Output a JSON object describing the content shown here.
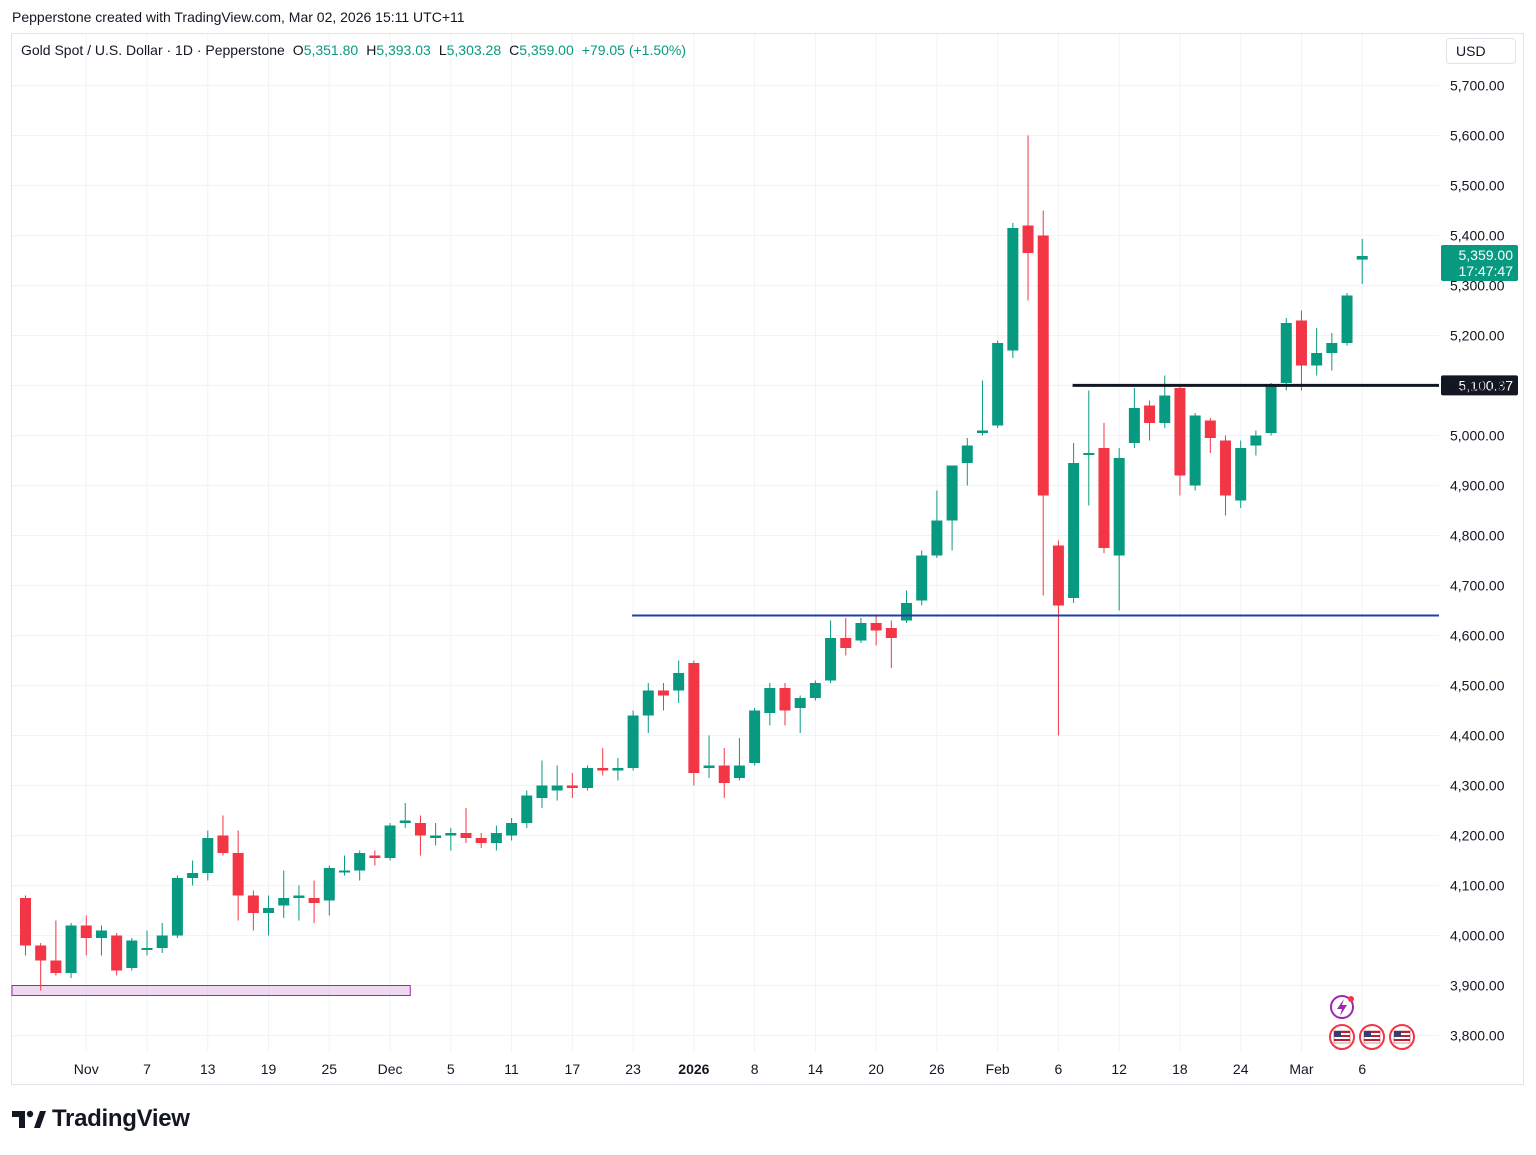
{
  "header": {
    "attribution": "Pepperstone created with TradingView.com, Mar 02, 2026 15:11 UTC+11"
  },
  "legend": {
    "symbol": "Gold Spot / U.S. Dollar · 1D · Pepperstone",
    "open_label": "O",
    "open": "5,351.80",
    "high_label": "H",
    "high": "5,393.03",
    "low_label": "L",
    "low": "5,303.28",
    "close_label": "C",
    "close": "5,359.00",
    "change": "+79.05 (+1.50%)"
  },
  "currency": "USD",
  "brand": {
    "name": "TradingView",
    "logo_icon": "tradingview-logo-icon"
  },
  "colors": {
    "up": "#089981",
    "down": "#f23645",
    "support_line": "#1e3fa8",
    "resistance_line": "#131722",
    "zone": "#9c27b0"
  },
  "events": [
    "lightning-event-icon",
    "us-flag-icon",
    "us-flag-icon",
    "us-flag-icon"
  ],
  "chart_data": {
    "type": "candlestick",
    "price_axis": {
      "min": 3750,
      "max": 5800,
      "tick_step": 100,
      "labels": [
        "3,800.00",
        "3,900.00",
        "4,000.00",
        "4,100.00",
        "4,200.00",
        "4,300.00",
        "4,400.00",
        "4,500.00",
        "4,600.00",
        "4,700.00",
        "4,800.00",
        "4,900.00",
        "5,000.00",
        "5,100.00",
        "5,200.00",
        "5,300.00",
        "5,400.00",
        "5,500.00",
        "5,600.00",
        "5,700.00"
      ]
    },
    "time_axis": {
      "labels": [
        {
          "bar": 4,
          "text": "Nov",
          "bold": false
        },
        {
          "bar": 8,
          "text": "7",
          "bold": false
        },
        {
          "bar": 12,
          "text": "13",
          "bold": false
        },
        {
          "bar": 16,
          "text": "19",
          "bold": false
        },
        {
          "bar": 20,
          "text": "25",
          "bold": false
        },
        {
          "bar": 24,
          "text": "Dec",
          "bold": false
        },
        {
          "bar": 28,
          "text": "5",
          "bold": false
        },
        {
          "bar": 32,
          "text": "11",
          "bold": false
        },
        {
          "bar": 36,
          "text": "17",
          "bold": false
        },
        {
          "bar": 40,
          "text": "23",
          "bold": false
        },
        {
          "bar": 44,
          "text": "2026",
          "bold": true
        },
        {
          "bar": 48,
          "text": "8",
          "bold": false
        },
        {
          "bar": 52,
          "text": "14",
          "bold": false
        },
        {
          "bar": 56,
          "text": "20",
          "bold": false
        },
        {
          "bar": 60,
          "text": "26",
          "bold": false
        },
        {
          "bar": 64,
          "text": "Feb",
          "bold": false
        },
        {
          "bar": 68,
          "text": "6",
          "bold": false
        },
        {
          "bar": 72,
          "text": "12",
          "bold": false
        },
        {
          "bar": 76,
          "text": "18",
          "bold": false
        },
        {
          "bar": 80,
          "text": "24",
          "bold": false
        },
        {
          "bar": 84,
          "text": "Mar",
          "bold": false
        },
        {
          "bar": 88,
          "text": "6",
          "bold": false
        }
      ]
    },
    "candles": [
      [
        4075,
        4080,
        3960,
        3980
      ],
      [
        3980,
        3985,
        3890,
        3950
      ],
      [
        3950,
        4030,
        3920,
        3925
      ],
      [
        3925,
        4025,
        3915,
        4020
      ],
      [
        4020,
        4040,
        3960,
        3995
      ],
      [
        3995,
        4020,
        3960,
        4010
      ],
      [
        4000,
        4005,
        3920,
        3930
      ],
      [
        3935,
        3995,
        3930,
        3990
      ],
      [
        3975,
        4010,
        3960,
        3975
      ],
      [
        3975,
        4025,
        3965,
        4000
      ],
      [
        4000,
        4120,
        3995,
        4115
      ],
      [
        4115,
        4150,
        4100,
        4125
      ],
      [
        4125,
        4210,
        4110,
        4195
      ],
      [
        4200,
        4240,
        4160,
        4165
      ],
      [
        4165,
        4210,
        4030,
        4080
      ],
      [
        4080,
        4090,
        4010,
        4045
      ],
      [
        4045,
        4080,
        4000,
        4055
      ],
      [
        4060,
        4130,
        4035,
        4075
      ],
      [
        4075,
        4100,
        4030,
        4080
      ],
      [
        4075,
        4110,
        4025,
        4065
      ],
      [
        4070,
        4140,
        4040,
        4135
      ],
      [
        4130,
        4160,
        4120,
        4130
      ],
      [
        4130,
        4170,
        4110,
        4165
      ],
      [
        4160,
        4170,
        4140,
        4155
      ],
      [
        4155,
        4225,
        4150,
        4220
      ],
      [
        4225,
        4265,
        4215,
        4230
      ],
      [
        4225,
        4240,
        4160,
        4200
      ],
      [
        4195,
        4225,
        4180,
        4200
      ],
      [
        4200,
        4215,
        4170,
        4205
      ],
      [
        4205,
        4255,
        4185,
        4195
      ],
      [
        4195,
        4205,
        4175,
        4185
      ],
      [
        4185,
        4220,
        4170,
        4205
      ],
      [
        4200,
        4235,
        4190,
        4225
      ],
      [
        4225,
        4290,
        4215,
        4280
      ],
      [
        4275,
        4350,
        4255,
        4300
      ],
      [
        4290,
        4340,
        4270,
        4300
      ],
      [
        4300,
        4325,
        4275,
        4295
      ],
      [
        4295,
        4340,
        4290,
        4335
      ],
      [
        4335,
        4375,
        4320,
        4330
      ],
      [
        4330,
        4355,
        4310,
        4335
      ],
      [
        4335,
        4450,
        4330,
        4440
      ],
      [
        4440,
        4505,
        4405,
        4490
      ],
      [
        4490,
        4505,
        4450,
        4480
      ],
      [
        4490,
        4550,
        4465,
        4525
      ],
      [
        4545,
        4550,
        4300,
        4325
      ],
      [
        4335,
        4400,
        4315,
        4340
      ],
      [
        4340,
        4375,
        4275,
        4305
      ],
      [
        4315,
        4395,
        4310,
        4340
      ],
      [
        4345,
        4455,
        4340,
        4450
      ],
      [
        4445,
        4505,
        4420,
        4495
      ],
      [
        4495,
        4505,
        4420,
        4450
      ],
      [
        4455,
        4480,
        4405,
        4475
      ],
      [
        4475,
        4510,
        4470,
        4505
      ],
      [
        4510,
        4630,
        4505,
        4595
      ],
      [
        4595,
        4635,
        4560,
        4575
      ],
      [
        4590,
        4635,
        4585,
        4625
      ],
      [
        4625,
        4640,
        4580,
        4610
      ],
      [
        4615,
        4630,
        4535,
        4595
      ],
      [
        4630,
        4690,
        4625,
        4665
      ],
      [
        4670,
        4770,
        4660,
        4760
      ],
      [
        4760,
        4890,
        4755,
        4830
      ],
      [
        4830,
        4935,
        4770,
        4940
      ],
      [
        4945,
        4995,
        4900,
        4980
      ],
      [
        5005,
        5110,
        5000,
        5010
      ],
      [
        5020,
        5190,
        5015,
        5185
      ],
      [
        5170,
        5425,
        5155,
        5415
      ],
      [
        5420,
        5600,
        5270,
        5365
      ],
      [
        5400,
        5450,
        4680,
        4880
      ],
      [
        4780,
        4790,
        4400,
        4660
      ],
      [
        4675,
        4985,
        4665,
        4945
      ],
      [
        4965,
        5090,
        4860,
        4965
      ],
      [
        4975,
        5025,
        4765,
        4775
      ],
      [
        4760,
        4975,
        4650,
        4955
      ],
      [
        4985,
        5095,
        4975,
        5055
      ],
      [
        5060,
        5070,
        4990,
        5025
      ],
      [
        5025,
        5120,
        5015,
        5080
      ],
      [
        5095,
        5100,
        4880,
        4920
      ],
      [
        4900,
        5045,
        4890,
        5040
      ],
      [
        5030,
        5035,
        4965,
        4995
      ],
      [
        4990,
        5000,
        4840,
        4880
      ],
      [
        4870,
        4990,
        4855,
        4975
      ],
      [
        4980,
        5010,
        4960,
        5000
      ],
      [
        5005,
        5105,
        5000,
        5100
      ],
      [
        5105,
        5235,
        5090,
        5225
      ],
      [
        5230,
        5250,
        5090,
        5140
      ],
      [
        5140,
        5215,
        5120,
        5165
      ],
      [
        5165,
        5205,
        5130,
        5185
      ],
      [
        5185,
        5285,
        5180,
        5280
      ],
      [
        5351.8,
        5393.03,
        5303.28,
        5359.0
      ]
    ],
    "horizontal_lines": [
      {
        "name": "resistance",
        "price": 5100.37,
        "label": "5,100.37",
        "from_bar": 69
      },
      {
        "name": "support",
        "price": 4640,
        "from_bar": 40
      }
    ],
    "zones": [
      {
        "name": "demand-zone",
        "top": 3900,
        "bottom": 3880,
        "from_bar": 0,
        "to_bar": 25
      }
    ],
    "last_price": {
      "price": 5359.0,
      "label": "5,359.00",
      "countdown": "17:47:47"
    }
  }
}
